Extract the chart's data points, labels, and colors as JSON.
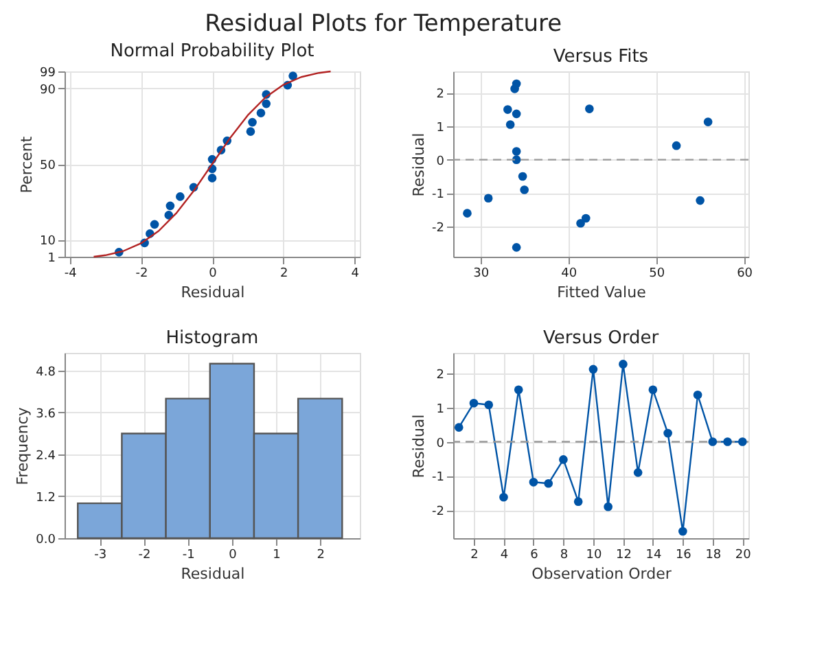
{
  "chart_data": [
    {
      "type": "scatter",
      "title": "Normal Probability Plot",
      "xlabel": "Residual",
      "ylabel": "Percent",
      "annotations": [
        "Residual Plots for Temperature"
      ],
      "xlim": [
        -4.15,
        4.15
      ],
      "ylim": [
        1,
        99
      ],
      "xticks": [
        -4,
        -2,
        0,
        2,
        4
      ],
      "yticks": [
        1,
        10,
        50,
        90,
        99
      ],
      "grid": true,
      "marker": "circle",
      "series": [
        {
          "type": "scatter",
          "color": "#0054a6",
          "x": [
            -2.62,
            -1.9,
            -1.75,
            -1.62,
            -1.22,
            -1.18,
            -0.9,
            -0.52,
            0,
            0,
            0,
            0.25,
            0.42,
            1.08,
            1.13,
            1.37,
            1.52,
            1.52,
            2.12,
            2.27
          ],
          "values": [
            3.4,
            8.3,
            13.2,
            18.1,
            23.0,
            27.9,
            32.8,
            37.7,
            42.6,
            47.5,
            52.5,
            57.4,
            62.3,
            67.2,
            72.1,
            77.0,
            81.9,
            86.8,
            91.7,
            96.6
          ]
        },
        {
          "type": "line",
          "marker": "none",
          "color": "#b22222",
          "x": [
            -3.33,
            -3,
            -2.5,
            -2,
            -1.5,
            -1,
            -0.5,
            0,
            0.5,
            1,
            1.5,
            2,
            2.5,
            3,
            3.33
          ],
          "values": [
            1.0,
            1.8,
            4.0,
            8.1,
            14.7,
            24.2,
            36.3,
            50,
            63.7,
            75.8,
            85.3,
            91.9,
            96.0,
            98.2,
            99.0
          ]
        }
      ]
    },
    {
      "type": "scatter",
      "title": "Versus Fits",
      "xlabel": "Fitted Value",
      "ylabel": "Residual",
      "xlim": [
        26.9,
        60.5
      ],
      "ylim": [
        -2.9,
        2.64
      ],
      "xticks": [
        30,
        40,
        50,
        60
      ],
      "yticks": [
        -2,
        -1,
        0,
        1,
        2
      ],
      "grid": true,
      "marker": "circle",
      "ref_lines": [
        {
          "axis": "y",
          "value": 0,
          "color": "#999999",
          "line_style": "dashed"
        }
      ],
      "series": [
        {
          "type": "scatter",
          "color": "#0054a6",
          "x": [
            28.5,
            30.9,
            33.1,
            33.4,
            33.9,
            34.1,
            34.1,
            34.1,
            34.1,
            34.8,
            35.0,
            34.1,
            41.4,
            42.0,
            42.4,
            52.3,
            55.0,
            55.9
          ],
          "values": [
            -1.6,
            -1.15,
            1.5,
            1.05,
            2.12,
            2.27,
            1.37,
            0.25,
            0,
            -0.5,
            -0.9,
            -2.62,
            -1.9,
            -1.75,
            1.52,
            0.42,
            -1.22,
            1.13
          ]
        }
      ]
    },
    {
      "type": "histogram",
      "title": "Histogram",
      "xlabel": "Residual",
      "ylabel": "Frequency",
      "xlim": [
        -3.8,
        2.9
      ],
      "ylim": [
        0,
        5.31
      ],
      "xticks": [
        -3,
        -2,
        -1,
        0,
        1,
        2
      ],
      "yticks": [
        {
          "value": 0,
          "label": "0.0"
        },
        {
          "value": 1.2,
          "label": "1.2"
        },
        {
          "value": 2.4,
          "label": "2.4"
        },
        {
          "value": 3.6,
          "label": "3.6"
        },
        {
          "value": 4.8,
          "label": "4.8"
        }
      ],
      "grid": true,
      "color": "#7ba6d9",
      "bins": [
        -3.5,
        -2.5,
        -1.5,
        -0.5,
        0.5,
        1.5,
        2.5
      ],
      "values": [
        1,
        3,
        4,
        5,
        3,
        4
      ]
    },
    {
      "type": "line",
      "title": "Versus Order",
      "xlabel": "Observation Order",
      "ylabel": "Residual",
      "xlim": [
        0.62,
        20.4
      ],
      "ylim": [
        -2.82,
        2.6
      ],
      "xticks": [
        2,
        4,
        6,
        8,
        10,
        12,
        14,
        16,
        18,
        20
      ],
      "yticks": [
        -2,
        -1,
        0,
        1,
        2
      ],
      "grid": true,
      "marker": "circle",
      "line_style": "solid",
      "ref_lines": [
        {
          "axis": "y",
          "value": 0,
          "color": "#999999",
          "line_style": "dashed"
        }
      ],
      "series": [
        {
          "type": "line",
          "color": "#0054a6",
          "x": [
            1,
            2,
            3,
            4,
            5,
            6,
            7,
            8,
            9,
            10,
            11,
            12,
            13,
            14,
            15,
            16,
            17,
            18,
            19,
            20
          ],
          "values": [
            0.42,
            1.13,
            1.08,
            -1.62,
            1.52,
            -1.18,
            -1.22,
            -0.52,
            -1.75,
            2.12,
            -1.9,
            2.27,
            -0.9,
            1.52,
            0.25,
            -2.62,
            1.37,
            0,
            0,
            0
          ]
        }
      ]
    }
  ]
}
